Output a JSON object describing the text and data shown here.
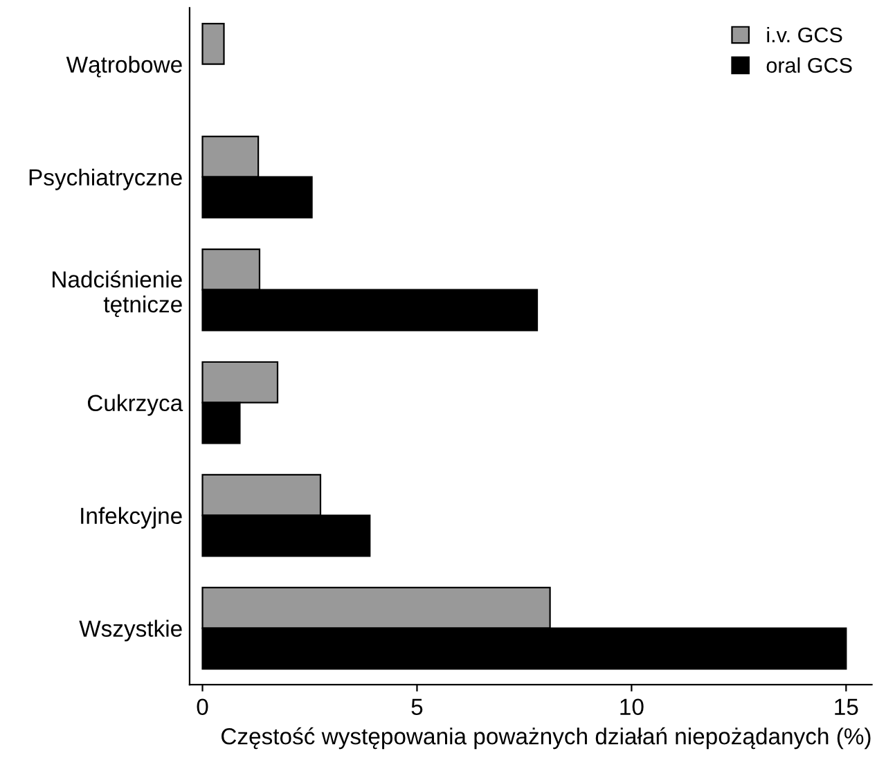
{
  "chart_data": {
    "type": "bar",
    "orientation": "horizontal",
    "xlabel": "Częstość występowania poważnych działań niepożądanych (%)",
    "categories": [
      "Wątrobowe",
      "Psychiatryczne",
      "Nadciśnienie\ntętnicze",
      "Cukrzyca",
      "Infekcyjne",
      "Wszystkie"
    ],
    "series": [
      {
        "name": "i.v. GCS",
        "color": "#999999",
        "values": [
          0.5,
          1.3,
          1.33,
          1.75,
          2.75,
          8.1
        ]
      },
      {
        "name": "oral GCS",
        "color": "#000000",
        "values": [
          null,
          2.55,
          7.8,
          0.87,
          3.9,
          15.0
        ]
      }
    ],
    "xlim": [
      -0.3,
      15.6
    ],
    "xticks": [
      0,
      5,
      10,
      15
    ],
    "grid": false,
    "legend": "top right"
  }
}
